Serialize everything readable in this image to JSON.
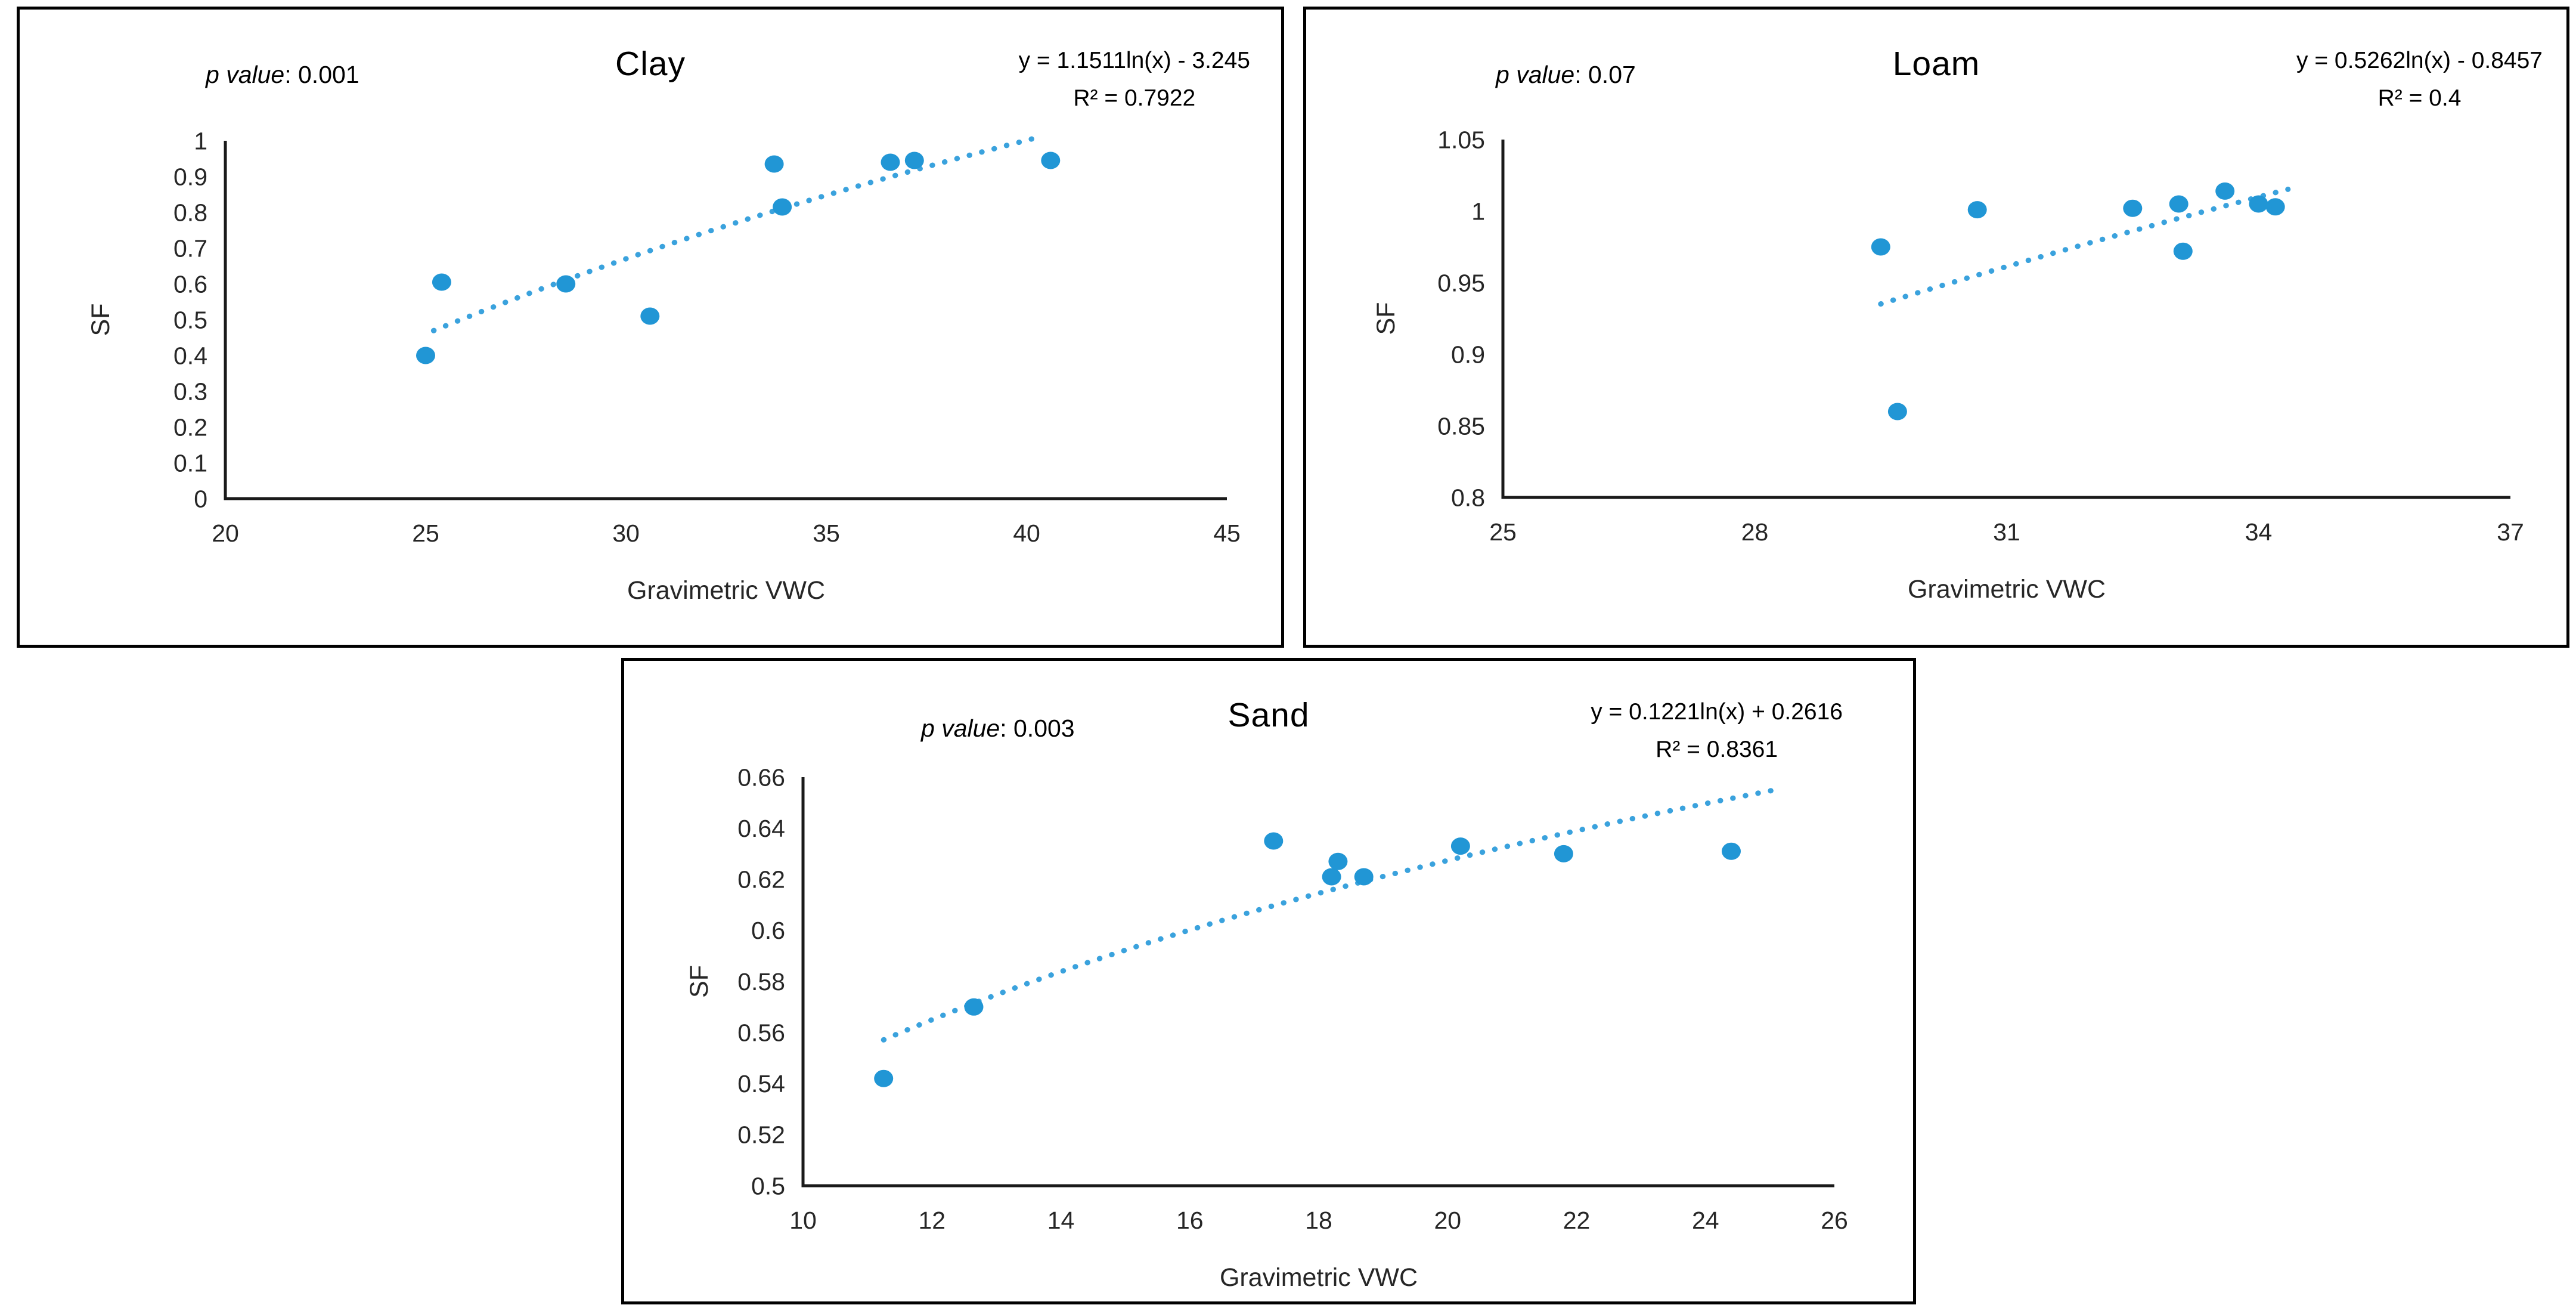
{
  "colors": {
    "marker": "#2196d5",
    "trend": "#3aa2dd",
    "axis": "#1a1a1a",
    "tick_text": "#262626",
    "text": "#000000",
    "panel_border": "#000000",
    "background": "#ffffff"
  },
  "chart_data": [
    {
      "type": "scatter",
      "title": "Clay",
      "p_label": "p value",
      "p_value_text": ": 0.001",
      "equation": "y = 1.1511ln(x) - 3.245",
      "r_squared": "R² = 0.7922",
      "xlabel": "Gravimetric VWC",
      "ylabel": "SF",
      "xlim": [
        20,
        45
      ],
      "ylim": [
        0,
        1
      ],
      "x_ticks": [
        "20",
        "25",
        "30",
        "35",
        "40",
        "45"
      ],
      "y_ticks": [
        "1",
        "0.9",
        "0.8",
        "0.7",
        "0.6",
        "0.5",
        "0.4",
        "0.3",
        "0.2",
        "0.1",
        "0"
      ],
      "grid": false,
      "legend": false,
      "points": [
        [
          25.0,
          0.4
        ],
        [
          25.4,
          0.605
        ],
        [
          28.5,
          0.6
        ],
        [
          30.6,
          0.51
        ],
        [
          33.7,
          0.935
        ],
        [
          33.9,
          0.815
        ],
        [
          36.6,
          0.94
        ],
        [
          37.2,
          0.945
        ],
        [
          40.6,
          0.945
        ]
      ],
      "trendline": {
        "kind": "log",
        "a": 1.1511,
        "b": -3.245,
        "x_start": 25.2,
        "x_end": 40.3
      }
    },
    {
      "type": "scatter",
      "title": "Loam",
      "p_label": "p value",
      "p_value_text": ": 0.07",
      "equation": "y = 0.5262ln(x) - 0.8457",
      "r_squared": "R² = 0.4",
      "xlabel": "Gravimetric VWC",
      "ylabel": "SF",
      "xlim": [
        25,
        37
      ],
      "ylim": [
        0.8,
        1.05
      ],
      "x_ticks": [
        "25",
        "28",
        "31",
        "34",
        "37"
      ],
      "y_ticks": [
        "1.05",
        "1",
        "0.95",
        "0.9",
        "0.85",
        "0.8"
      ],
      "grid": false,
      "legend": false,
      "points": [
        [
          29.5,
          0.975
        ],
        [
          29.7,
          0.86
        ],
        [
          30.65,
          1.001
        ],
        [
          32.5,
          1.002
        ],
        [
          33.05,
          1.005
        ],
        [
          33.1,
          0.972
        ],
        [
          33.6,
          1.014
        ],
        [
          34.0,
          1.005
        ],
        [
          34.2,
          1.003
        ]
      ],
      "trendline": {
        "kind": "log",
        "a": 0.5262,
        "b": -0.8457,
        "x_start": 29.5,
        "x_end": 34.35
      }
    },
    {
      "type": "scatter",
      "title": "Sand",
      "p_label": "p value",
      "p_value_text": ": 0.003",
      "equation": "y = 0.1221ln(x) + 0.2616",
      "r_squared": "R² = 0.8361",
      "xlabel": "Gravimetric VWC",
      "ylabel": "SF",
      "xlim": [
        10,
        26
      ],
      "ylim": [
        0.5,
        0.66
      ],
      "x_ticks": [
        "10",
        "12",
        "14",
        "16",
        "18",
        "20",
        "22",
        "24",
        "26"
      ],
      "y_ticks": [
        "0.66",
        "0.64",
        "0.62",
        "0.6",
        "0.58",
        "0.56",
        "0.54",
        "0.52",
        "0.5"
      ],
      "grid": false,
      "legend": false,
      "points": [
        [
          11.25,
          0.542
        ],
        [
          12.65,
          0.57
        ],
        [
          17.3,
          0.635
        ],
        [
          18.2,
          0.621
        ],
        [
          18.3,
          0.627
        ],
        [
          18.7,
          0.621
        ],
        [
          20.2,
          0.633
        ],
        [
          21.8,
          0.63
        ],
        [
          24.4,
          0.631
        ]
      ],
      "trendline": {
        "kind": "log",
        "a": 0.1221,
        "b": 0.2616,
        "x_start": 11.25,
        "x_end": 25.2
      }
    }
  ]
}
